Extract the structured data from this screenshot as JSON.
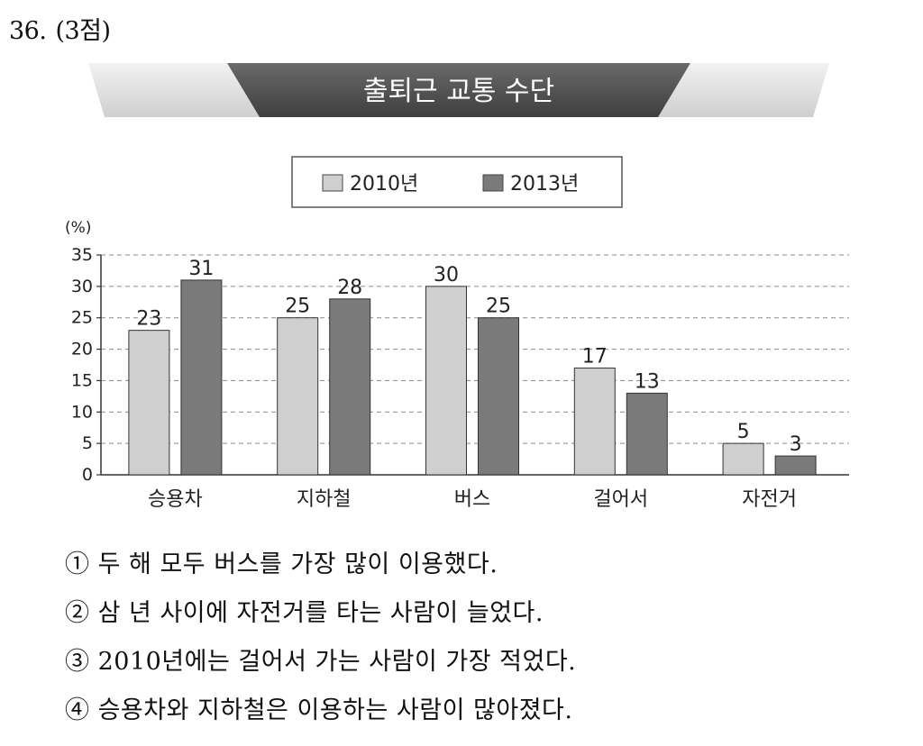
{
  "question": {
    "number": "36.",
    "points": "(3점)"
  },
  "chart_data": {
    "type": "bar",
    "title": "출퇴근 교통 수단",
    "unit_label": "(%)",
    "categories": [
      "승용차",
      "지하철",
      "버스",
      "걸어서",
      "자전거"
    ],
    "series": [
      {
        "name": "2010년",
        "values": [
          23,
          25,
          30,
          17,
          5
        ],
        "color": "#cfcfcf"
      },
      {
        "name": "2013년",
        "values": [
          31,
          28,
          25,
          13,
          3
        ],
        "color": "#7a7a7a"
      }
    ],
    "ylim": [
      0,
      35
    ],
    "yticks": [
      0,
      5,
      10,
      15,
      20,
      25,
      30,
      35
    ],
    "grid": true,
    "legend_position": "top-center"
  },
  "choices": [
    {
      "marker": "①",
      "text": "두 해 모두 버스를 가장 많이 이용했다."
    },
    {
      "marker": "②",
      "text": "삼 년 사이에 자전거를 타는 사람이 늘었다."
    },
    {
      "marker": "③",
      "text": "2010년에는 걸어서 가는 사람이 가장 적었다."
    },
    {
      "marker": "④",
      "text": "승용차와 지하철은 이용하는 사람이 많아졌다."
    }
  ]
}
